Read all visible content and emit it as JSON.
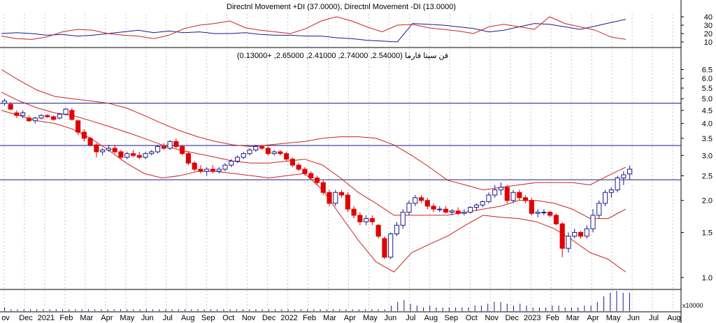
{
  "adx_panel": {
    "title": "Directnl Movement +DI (37.0000), Directnl Movement -DI (13.0000)",
    "ticks": [
      "40",
      "30",
      "20",
      "10"
    ]
  },
  "price_panel": {
    "title": "فن سيتا فارما (2.54000, 2.74000, 2.41000, 2.65000, +0.13000)",
    "ticks": [
      "6.5",
      "6.0",
      "5.5",
      "5.0",
      "4.5",
      "4.0",
      "3.5",
      "3.0",
      "2.5",
      "2.0",
      "1.5",
      "1.0"
    ]
  },
  "volume_panel": {
    "unit_label": "x10000"
  },
  "x_axis": {
    "labels": [
      "ov",
      "Dec",
      "2021",
      "Feb",
      "Mar",
      "Apr",
      "May",
      "Jun",
      "Jul",
      "Aug",
      "Sep",
      "Oct",
      "Nov",
      "Dec",
      "2022",
      "Feb",
      "Mar",
      "Apr",
      "May",
      "Jun",
      "Jul",
      "Aug",
      "Sep",
      "Oct",
      "Nov",
      "Dec",
      "2023",
      "Feb",
      "Mar",
      "Apr",
      "May",
      "Jun",
      "Jul",
      "Aug"
    ]
  },
  "colors": {
    "up_candle": "#1a1a8c",
    "down_candle": "#e00000",
    "bollinger": "#cc2222",
    "plus_di": "#1a1a8c",
    "minus_di": "#cc2222",
    "hline": "#1a1a8c",
    "volume": "#1a1a8c"
  },
  "chart_data": {
    "type": "candlestick",
    "scale": "log",
    "horizontal_lines": [
      4.8,
      3.28,
      2.41
    ],
    "last_bar": {
      "open": 2.54,
      "high": 2.74,
      "low": 2.41,
      "close": 2.65,
      "change": 0.13
    },
    "bollinger": {
      "upper": [
        6.5,
        5.9,
        5.4,
        5.1,
        5.0,
        4.9,
        4.8,
        4.6,
        4.3,
        4.0,
        3.75,
        3.55,
        3.4,
        3.3,
        3.25,
        3.3,
        3.35,
        3.4,
        3.5,
        3.55,
        3.55,
        3.5,
        3.3,
        3.0,
        2.7,
        2.4,
        2.3,
        2.2,
        2.25,
        2.3,
        2.35,
        2.35,
        2.35,
        2.3,
        2.5,
        2.7
      ],
      "middle": [
        5.3,
        4.9,
        4.6,
        4.4,
        4.3,
        4.1,
        3.9,
        3.7,
        3.5,
        3.3,
        3.15,
        3.05,
        2.95,
        2.85,
        2.8,
        2.8,
        2.85,
        2.9,
        2.75,
        2.45,
        2.15,
        1.95,
        1.75,
        1.75,
        1.75,
        1.75,
        1.8,
        1.85,
        1.9,
        2.0,
        2.0,
        1.95,
        1.85,
        1.7,
        1.7,
        1.85
      ],
      "lower": [
        4.5,
        4.3,
        4.1,
        4.0,
        3.8,
        3.5,
        3.15,
        2.8,
        2.55,
        2.45,
        2.5,
        2.6,
        2.6,
        2.55,
        2.5,
        2.45,
        2.5,
        2.55,
        2.2,
        1.75,
        1.4,
        1.15,
        1.05,
        1.25,
        1.35,
        1.45,
        1.6,
        1.75,
        1.72,
        1.7,
        1.65,
        1.55,
        1.4,
        1.25,
        1.18,
        1.05
      ]
    },
    "plus_di": [
      20,
      21,
      20,
      18,
      19,
      17,
      18,
      20,
      22,
      24,
      21,
      23,
      21,
      22,
      20,
      20,
      21,
      19,
      18,
      18,
      17,
      17,
      15,
      14,
      12,
      11,
      10,
      32,
      31,
      30,
      28,
      26,
      22,
      24,
      28,
      32,
      31,
      28,
      25,
      29,
      33,
      37
    ],
    "minus_di": [
      17,
      14,
      13,
      16,
      22,
      25,
      24,
      20,
      18,
      17,
      14,
      18,
      26,
      30,
      32,
      35,
      27,
      24,
      22,
      20,
      26,
      35,
      40,
      35,
      28,
      22,
      30,
      31,
      27,
      25,
      23,
      20,
      28,
      31,
      28,
      25,
      40,
      32,
      28,
      24,
      16,
      13
    ],
    "candles": [
      {
        "o": 4.8,
        "h": 5.0,
        "l": 4.7,
        "c": 4.9
      },
      {
        "o": 4.75,
        "h": 4.85,
        "l": 4.5,
        "c": 4.55
      },
      {
        "o": 4.4,
        "h": 4.5,
        "l": 4.2,
        "c": 4.3
      },
      {
        "o": 4.3,
        "h": 4.5,
        "l": 4.2,
        "c": 4.4
      },
      {
        "o": 4.2,
        "h": 4.3,
        "l": 4.05,
        "c": 4.1
      },
      {
        "o": 4.1,
        "h": 4.25,
        "l": 4.0,
        "c": 4.2
      },
      {
        "o": 4.2,
        "h": 4.35,
        "l": 4.15,
        "c": 4.3
      },
      {
        "o": 4.3,
        "h": 4.35,
        "l": 4.2,
        "c": 4.25
      },
      {
        "o": 4.25,
        "h": 4.3,
        "l": 4.1,
        "c": 4.15
      },
      {
        "o": 4.2,
        "h": 4.4,
        "l": 4.15,
        "c": 4.35
      },
      {
        "o": 4.35,
        "h": 4.6,
        "l": 4.3,
        "c": 4.55
      },
      {
        "o": 4.5,
        "h": 4.6,
        "l": 4.1,
        "c": 4.15
      },
      {
        "o": 4.1,
        "h": 4.15,
        "l": 3.6,
        "c": 3.7
      },
      {
        "o": 3.7,
        "h": 3.8,
        "l": 3.4,
        "c": 3.5
      },
      {
        "o": 3.5,
        "h": 3.55,
        "l": 3.25,
        "c": 3.3
      },
      {
        "o": 3.3,
        "h": 3.35,
        "l": 2.95,
        "c": 3.1
      },
      {
        "o": 3.1,
        "h": 3.2,
        "l": 3.0,
        "c": 3.15
      },
      {
        "o": 3.15,
        "h": 3.3,
        "l": 3.1,
        "c": 3.2
      },
      {
        "o": 3.2,
        "h": 3.3,
        "l": 3.05,
        "c": 3.1
      },
      {
        "o": 3.1,
        "h": 3.15,
        "l": 2.9,
        "c": 2.95
      },
      {
        "o": 2.95,
        "h": 3.1,
        "l": 2.9,
        "c": 3.05
      },
      {
        "o": 3.05,
        "h": 3.15,
        "l": 2.95,
        "c": 3.0
      },
      {
        "o": 3.0,
        "h": 3.1,
        "l": 2.9,
        "c": 2.95
      },
      {
        "o": 2.95,
        "h": 3.1,
        "l": 2.9,
        "c": 3.05
      },
      {
        "o": 3.05,
        "h": 3.15,
        "l": 3.0,
        "c": 3.1
      },
      {
        "o": 3.1,
        "h": 3.3,
        "l": 3.05,
        "c": 3.25
      },
      {
        "o": 3.25,
        "h": 3.35,
        "l": 3.15,
        "c": 3.2
      },
      {
        "o": 3.2,
        "h": 3.45,
        "l": 3.15,
        "c": 3.4
      },
      {
        "o": 3.4,
        "h": 3.5,
        "l": 3.2,
        "c": 3.25
      },
      {
        "o": 3.25,
        "h": 3.3,
        "l": 3.0,
        "c": 3.05
      },
      {
        "o": 3.05,
        "h": 3.1,
        "l": 2.75,
        "c": 2.8
      },
      {
        "o": 2.8,
        "h": 2.85,
        "l": 2.6,
        "c": 2.65
      },
      {
        "o": 2.65,
        "h": 2.75,
        "l": 2.55,
        "c": 2.6
      },
      {
        "o": 2.6,
        "h": 2.7,
        "l": 2.5,
        "c": 2.65
      },
      {
        "o": 2.65,
        "h": 2.75,
        "l": 2.55,
        "c": 2.6
      },
      {
        "o": 2.6,
        "h": 2.7,
        "l": 2.55,
        "c": 2.65
      },
      {
        "o": 2.65,
        "h": 2.8,
        "l": 2.6,
        "c": 2.75
      },
      {
        "o": 2.75,
        "h": 2.9,
        "l": 2.7,
        "c": 2.85
      },
      {
        "o": 2.85,
        "h": 3.0,
        "l": 2.8,
        "c": 2.95
      },
      {
        "o": 2.95,
        "h": 3.1,
        "l": 2.9,
        "c": 3.05
      },
      {
        "o": 3.05,
        "h": 3.2,
        "l": 3.0,
        "c": 3.15
      },
      {
        "o": 3.15,
        "h": 3.3,
        "l": 3.1,
        "c": 3.25
      },
      {
        "o": 3.25,
        "h": 3.3,
        "l": 3.15,
        "c": 3.2
      },
      {
        "o": 3.2,
        "h": 3.25,
        "l": 3.0,
        "c": 3.05
      },
      {
        "o": 3.05,
        "h": 3.15,
        "l": 3.0,
        "c": 3.1
      },
      {
        "o": 3.1,
        "h": 3.15,
        "l": 3.0,
        "c": 3.05
      },
      {
        "o": 3.05,
        "h": 3.1,
        "l": 2.85,
        "c": 2.9
      },
      {
        "o": 2.9,
        "h": 2.95,
        "l": 2.7,
        "c": 2.75
      },
      {
        "o": 2.75,
        "h": 2.8,
        "l": 2.6,
        "c": 2.65
      },
      {
        "o": 2.65,
        "h": 2.7,
        "l": 2.5,
        "c": 2.55
      },
      {
        "o": 2.55,
        "h": 2.6,
        "l": 2.4,
        "c": 2.45
      },
      {
        "o": 2.45,
        "h": 2.5,
        "l": 2.3,
        "c": 2.35
      },
      {
        "o": 2.35,
        "h": 2.4,
        "l": 2.1,
        "c": 2.15
      },
      {
        "o": 2.15,
        "h": 2.2,
        "l": 1.9,
        "c": 1.95
      },
      {
        "o": 1.95,
        "h": 2.2,
        "l": 1.9,
        "c": 2.15
      },
      {
        "o": 2.15,
        "h": 2.2,
        "l": 2.05,
        "c": 2.1
      },
      {
        "o": 2.1,
        "h": 2.15,
        "l": 1.8,
        "c": 1.85
      },
      {
        "o": 1.85,
        "h": 1.9,
        "l": 1.7,
        "c": 1.75
      },
      {
        "o": 1.75,
        "h": 1.8,
        "l": 1.6,
        "c": 1.65
      },
      {
        "o": 1.65,
        "h": 1.75,
        "l": 1.6,
        "c": 1.7
      },
      {
        "o": 1.7,
        "h": 1.75,
        "l": 1.6,
        "c": 1.65
      },
      {
        "o": 1.6,
        "h": 1.62,
        "l": 1.42,
        "c": 1.45
      },
      {
        "o": 1.42,
        "h": 1.45,
        "l": 1.18,
        "c": 1.2
      },
      {
        "o": 1.2,
        "h": 1.5,
        "l": 1.18,
        "c": 1.48
      },
      {
        "o": 1.48,
        "h": 1.65,
        "l": 1.45,
        "c": 1.6
      },
      {
        "o": 1.6,
        "h": 1.85,
        "l": 1.55,
        "c": 1.8
      },
      {
        "o": 1.8,
        "h": 2.0,
        "l": 1.75,
        "c": 1.95
      },
      {
        "o": 1.95,
        "h": 2.1,
        "l": 1.9,
        "c": 2.05
      },
      {
        "o": 2.05,
        "h": 2.1,
        "l": 1.95,
        "c": 2.0
      },
      {
        "o": 2.0,
        "h": 2.05,
        "l": 1.85,
        "c": 1.9
      },
      {
        "o": 1.9,
        "h": 1.95,
        "l": 1.8,
        "c": 1.85
      },
      {
        "o": 1.85,
        "h": 1.9,
        "l": 1.8,
        "c": 1.85
      },
      {
        "o": 1.85,
        "h": 1.9,
        "l": 1.78,
        "c": 1.8
      },
      {
        "o": 1.8,
        "h": 1.85,
        "l": 1.75,
        "c": 1.82
      },
      {
        "o": 1.82,
        "h": 1.88,
        "l": 1.75,
        "c": 1.78
      },
      {
        "o": 1.78,
        "h": 1.85,
        "l": 1.75,
        "c": 1.8
      },
      {
        "o": 1.8,
        "h": 1.9,
        "l": 1.78,
        "c": 1.88
      },
      {
        "o": 1.88,
        "h": 1.95,
        "l": 1.82,
        "c": 1.92
      },
      {
        "o": 1.92,
        "h": 2.0,
        "l": 1.88,
        "c": 1.98
      },
      {
        "o": 1.98,
        "h": 2.15,
        "l": 1.95,
        "c": 2.1
      },
      {
        "o": 2.1,
        "h": 2.3,
        "l": 2.05,
        "c": 2.2
      },
      {
        "o": 2.2,
        "h": 2.35,
        "l": 2.1,
        "c": 2.25
      },
      {
        "o": 2.25,
        "h": 2.3,
        "l": 1.95,
        "c": 2.0
      },
      {
        "o": 2.0,
        "h": 2.2,
        "l": 1.95,
        "c": 2.15
      },
      {
        "o": 2.15,
        "h": 2.2,
        "l": 2.0,
        "c": 2.05
      },
      {
        "o": 2.05,
        "h": 2.1,
        "l": 1.95,
        "c": 2.0
      },
      {
        "o": 2.0,
        "h": 2.05,
        "l": 1.75,
        "c": 1.78
      },
      {
        "o": 1.78,
        "h": 1.85,
        "l": 1.72,
        "c": 1.8
      },
      {
        "o": 1.8,
        "h": 1.85,
        "l": 1.75,
        "c": 1.8
      },
      {
        "o": 1.8,
        "h": 1.82,
        "l": 1.72,
        "c": 1.75
      },
      {
        "o": 1.75,
        "h": 1.78,
        "l": 1.6,
        "c": 1.62
      },
      {
        "o": 1.62,
        "h": 1.65,
        "l": 1.2,
        "c": 1.3
      },
      {
        "o": 1.3,
        "h": 1.5,
        "l": 1.25,
        "c": 1.45
      },
      {
        "o": 1.45,
        "h": 1.55,
        "l": 1.42,
        "c": 1.5
      },
      {
        "o": 1.5,
        "h": 1.52,
        "l": 1.42,
        "c": 1.45
      },
      {
        "o": 1.45,
        "h": 1.6,
        "l": 1.42,
        "c": 1.55
      },
      {
        "o": 1.55,
        "h": 1.85,
        "l": 1.5,
        "c": 1.75
      },
      {
        "o": 1.75,
        "h": 2.0,
        "l": 1.7,
        "c": 1.95
      },
      {
        "o": 1.95,
        "h": 2.2,
        "l": 1.9,
        "c": 2.15
      },
      {
        "o": 2.15,
        "h": 2.25,
        "l": 2.05,
        "c": 2.2
      },
      {
        "o": 2.2,
        "h": 2.5,
        "l": 2.15,
        "c": 2.45
      },
      {
        "o": 2.45,
        "h": 2.6,
        "l": 2.3,
        "c": 2.52
      },
      {
        "o": 2.54,
        "h": 2.74,
        "l": 2.41,
        "c": 2.65
      }
    ],
    "volume": [
      0.2,
      0.1,
      0.1,
      0.1,
      0.1,
      0.1,
      0.1,
      0.1,
      0.1,
      0.1,
      0.1,
      0.1,
      0.1,
      0.1,
      0.1,
      0.1,
      0.1,
      0.1,
      0.1,
      0.1,
      0.1,
      0.1,
      0.1,
      0.1,
      0.1,
      0.1,
      0.1,
      0.1,
      0.1,
      0.1,
      0.1,
      0.1,
      0.1,
      0.1,
      0.1,
      0.1,
      0.1,
      0.1,
      0.1,
      0.1,
      0.1,
      0.1,
      0.1,
      0.1,
      0.1,
      0.1,
      0.1,
      0.1,
      0.1,
      0.1,
      0.1,
      0.1,
      0.1,
      0.1,
      0.1,
      0.1,
      0.1,
      0.1,
      0.1,
      0.1,
      0.3,
      0.5,
      0.6,
      0.4,
      0.3,
      0.2,
      0.3,
      0.2,
      0.2,
      0.2,
      0.2,
      0.2,
      0.2,
      0.3,
      0.3,
      0.4,
      0.5,
      0.5,
      0.4,
      0.3,
      0.4,
      0.3,
      0.2,
      0.2,
      0.2,
      0.3,
      0.3,
      0.2,
      0.2,
      0.2,
      0.3,
      0.3,
      0.5,
      0.8,
      1.0,
      1.1,
      1.0,
      1.0
    ]
  }
}
